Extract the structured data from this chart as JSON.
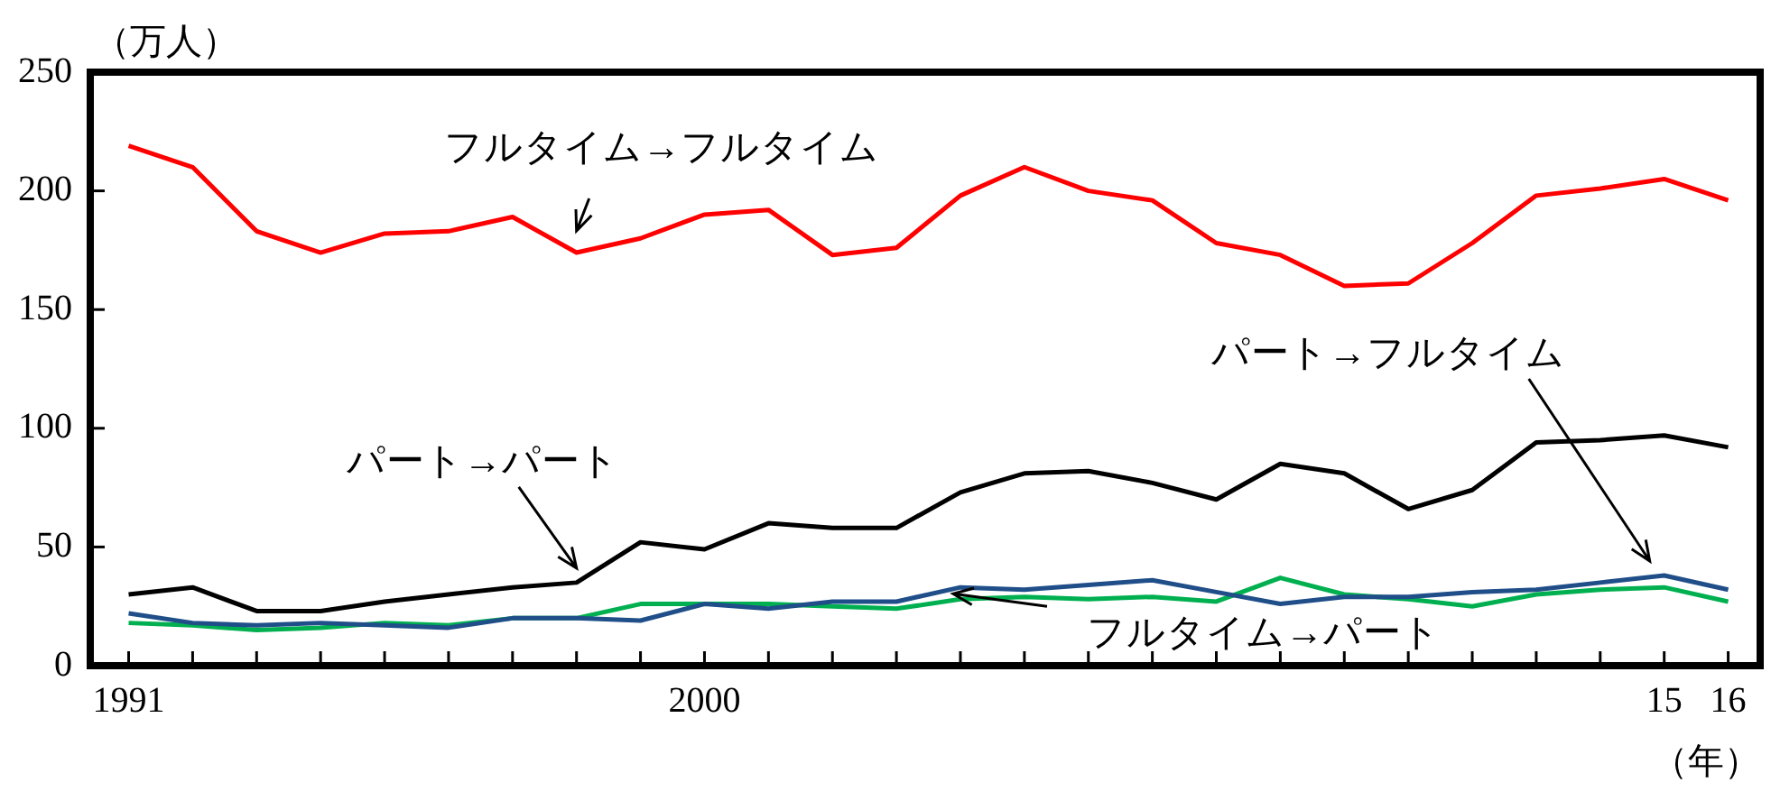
{
  "chart_data": {
    "type": "line",
    "ylabel": "（万人）",
    "xlabel": "（年）",
    "grid": false,
    "legend": false,
    "marker": "none",
    "line_style": "solid",
    "x": [
      1991,
      1992,
      1993,
      1994,
      1995,
      1996,
      1997,
      1998,
      1999,
      2000,
      2001,
      2002,
      2003,
      2004,
      2005,
      2006,
      2007,
      2008,
      2009,
      2010,
      2011,
      2012,
      2013,
      2014,
      2015,
      2016
    ],
    "xlim": [
      1990.4,
      2016.5
    ],
    "xticks": [
      {
        "value": 1991,
        "label": "1991"
      },
      {
        "value": 1992,
        "label": null
      },
      {
        "value": 1993,
        "label": null
      },
      {
        "value": 1994,
        "label": null
      },
      {
        "value": 1995,
        "label": null
      },
      {
        "value": 1996,
        "label": null
      },
      {
        "value": 1997,
        "label": null
      },
      {
        "value": 1998,
        "label": null
      },
      {
        "value": 1999,
        "label": null
      },
      {
        "value": 2000,
        "label": "2000"
      },
      {
        "value": 2001,
        "label": null
      },
      {
        "value": 2002,
        "label": null
      },
      {
        "value": 2003,
        "label": null
      },
      {
        "value": 2004,
        "label": null
      },
      {
        "value": 2005,
        "label": null
      },
      {
        "value": 2006,
        "label": null
      },
      {
        "value": 2007,
        "label": null
      },
      {
        "value": 2008,
        "label": null
      },
      {
        "value": 2009,
        "label": null
      },
      {
        "value": 2010,
        "label": null
      },
      {
        "value": 2011,
        "label": null
      },
      {
        "value": 2012,
        "label": null
      },
      {
        "value": 2013,
        "label": null
      },
      {
        "value": 2014,
        "label": null
      },
      {
        "value": 2015,
        "label": "15"
      },
      {
        "value": 2016,
        "label": "16"
      }
    ],
    "ylim": [
      0,
      250
    ],
    "yticks": [
      0,
      50,
      100,
      150,
      200,
      250
    ],
    "series": [
      {
        "name": "フルタイム→フルタイム",
        "color": "#ff0000",
        "values": [
          219,
          210,
          183,
          174,
          182,
          183,
          189,
          174,
          180,
          190,
          192,
          173,
          176,
          198,
          210,
          200,
          196,
          178,
          173,
          160,
          161,
          178,
          198,
          201,
          205,
          196
        ]
      },
      {
        "name": "パート→パート",
        "color": "#000000",
        "values": [
          30,
          33,
          23,
          23,
          27,
          30,
          33,
          35,
          52,
          49,
          60,
          58,
          58,
          73,
          81,
          82,
          77,
          70,
          85,
          81,
          66,
          74,
          94,
          95,
          97,
          92
        ]
      },
      {
        "name": "パート→フルタイム",
        "color": "#1f4e89",
        "values": [
          22,
          18,
          17,
          18,
          17,
          16,
          20,
          20,
          19,
          26,
          24,
          27,
          27,
          33,
          32,
          34,
          36,
          31,
          26,
          29,
          29,
          31,
          32,
          35,
          38,
          32
        ]
      },
      {
        "name": "フルタイム→パート",
        "color": "#00b050",
        "values": [
          18,
          17,
          15,
          16,
          18,
          17,
          20,
          20,
          26,
          26,
          26,
          25,
          24,
          28,
          29,
          28,
          29,
          27,
          37,
          30,
          28,
          25,
          30,
          32,
          33,
          27
        ]
      }
    ]
  }
}
